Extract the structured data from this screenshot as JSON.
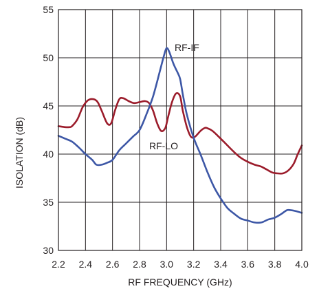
{
  "chart_data": {
    "type": "line",
    "xlabel": "RF FREQUENCY (GHz)",
    "ylabel": "ISOLATION (dB)",
    "xlim": [
      2.2,
      4.0
    ],
    "ylim": [
      30,
      55
    ],
    "x_ticks": [
      "2.2",
      "2.4",
      "2.6",
      "2.8",
      "3.0",
      "3.2",
      "3.4",
      "3.6",
      "3.8",
      "4.0"
    ],
    "y_ticks": [
      "30",
      "35",
      "40",
      "45",
      "50",
      "55"
    ],
    "grid": true,
    "series": [
      {
        "name": "RF-LO",
        "color": "#9b1c2b",
        "x": [
          2.2,
          2.25,
          2.28,
          2.3,
          2.34,
          2.38,
          2.42,
          2.46,
          2.49,
          2.52,
          2.56,
          2.59,
          2.62,
          2.65,
          2.68,
          2.72,
          2.76,
          2.8,
          2.84,
          2.87,
          2.9,
          2.93,
          2.96,
          2.99,
          3.01,
          3.04,
          3.07,
          3.1,
          3.12,
          3.15,
          3.18,
          3.21,
          3.25,
          3.28,
          3.3,
          3.34,
          3.4,
          3.45,
          3.5,
          3.55,
          3.6,
          3.65,
          3.7,
          3.74,
          3.78,
          3.82,
          3.86,
          3.9,
          3.94,
          3.97,
          4.0
        ],
        "y": [
          42.9,
          42.8,
          42.8,
          42.9,
          43.6,
          44.9,
          45.6,
          45.7,
          45.4,
          44.5,
          43.2,
          43.2,
          44.6,
          45.7,
          45.8,
          45.5,
          45.3,
          45.4,
          45.5,
          45.3,
          44.5,
          43.2,
          42.4,
          42.7,
          43.8,
          45.4,
          46.3,
          46.0,
          44.5,
          42.8,
          41.8,
          41.8,
          42.4,
          42.7,
          42.7,
          42.4,
          41.6,
          40.9,
          40.2,
          39.6,
          39.2,
          38.9,
          38.7,
          38.4,
          38.1,
          38.0,
          38.0,
          38.3,
          39.0,
          40.0,
          40.9
        ]
      },
      {
        "name": "RF-IF",
        "color": "#3d57a6",
        "x": [
          2.2,
          2.25,
          2.3,
          2.35,
          2.4,
          2.45,
          2.48,
          2.52,
          2.56,
          2.6,
          2.65,
          2.7,
          2.75,
          2.8,
          2.85,
          2.9,
          2.95,
          2.98,
          3.0,
          3.02,
          3.05,
          3.08,
          3.1,
          3.12,
          3.15,
          3.2,
          3.25,
          3.3,
          3.35,
          3.4,
          3.45,
          3.5,
          3.55,
          3.6,
          3.65,
          3.7,
          3.75,
          3.8,
          3.85,
          3.88,
          3.9,
          3.95,
          4.0
        ],
        "y": [
          41.9,
          41.6,
          41.3,
          40.7,
          40.0,
          39.4,
          38.9,
          38.9,
          39.1,
          39.4,
          40.4,
          41.1,
          41.8,
          42.5,
          44.1,
          46.0,
          48.6,
          50.2,
          51.0,
          50.6,
          49.4,
          48.5,
          47.8,
          46.2,
          44.1,
          41.7,
          40.0,
          38.2,
          36.6,
          35.4,
          34.4,
          33.8,
          33.3,
          33.1,
          32.9,
          32.9,
          33.2,
          33.4,
          33.8,
          34.1,
          34.2,
          34.1,
          33.9
        ]
      }
    ]
  }
}
